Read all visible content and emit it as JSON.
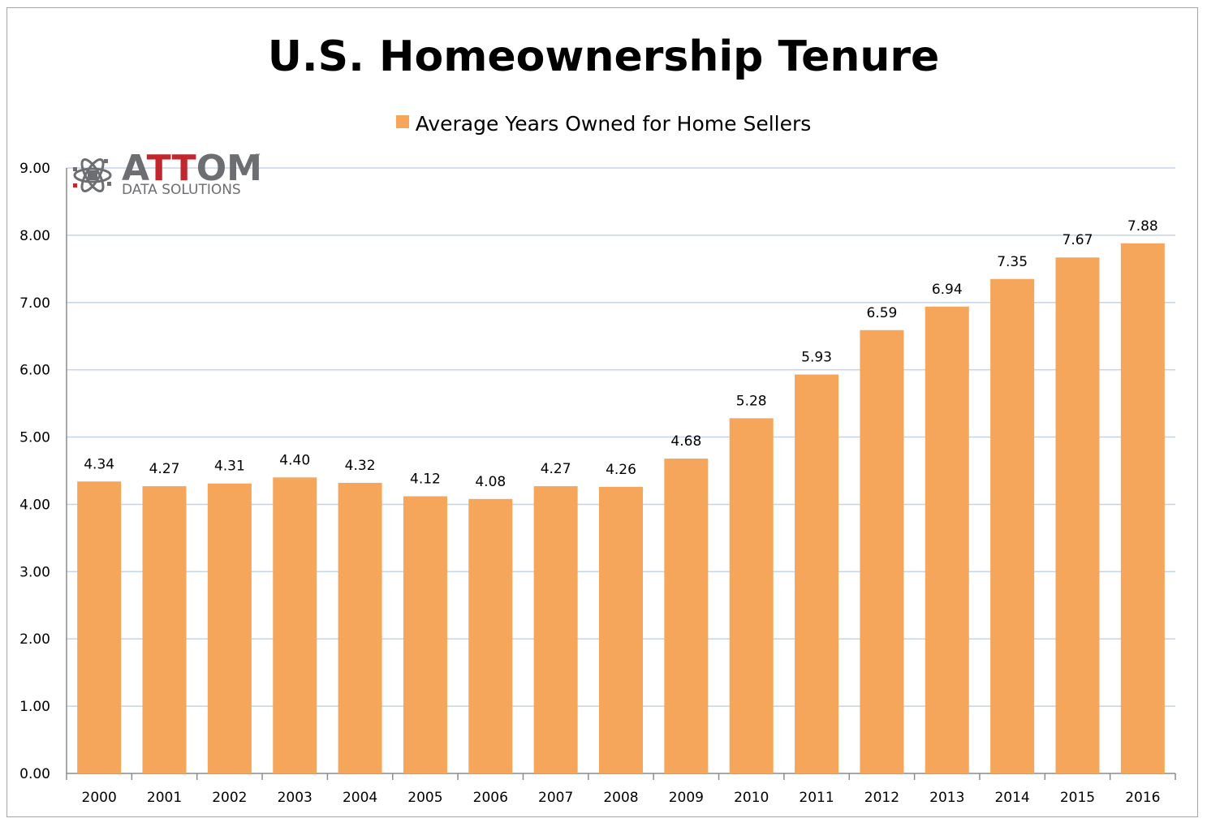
{
  "chart_data": {
    "type": "bar",
    "title": "U.S. Homeownership Tenure",
    "legend_position": "top-center",
    "grid": true,
    "ylim": [
      0,
      9
    ],
    "ytick_step": 1,
    "categories": [
      "2000",
      "2001",
      "2002",
      "2003",
      "2004",
      "2005",
      "2006",
      "2007",
      "2008",
      "2009",
      "2010",
      "2011",
      "2012",
      "2013",
      "2014",
      "2015",
      "2016"
    ],
    "series": [
      {
        "name": "Average Years Owned for Home Sellers",
        "values": [
          4.34,
          4.27,
          4.31,
          4.4,
          4.32,
          4.12,
          4.08,
          4.27,
          4.26,
          4.68,
          5.28,
          5.93,
          6.59,
          6.94,
          7.35,
          7.67,
          7.88
        ],
        "labels": [
          "4.34",
          "4.27",
          "4.31",
          "4.40",
          "4.32",
          "4.12",
          "4.08",
          "4.27",
          "4.26",
          "4.68",
          "5.28",
          "5.93",
          "6.59",
          "6.94",
          "7.35",
          "7.67",
          "7.88"
        ]
      }
    ],
    "yticks": [
      "0.00",
      "1.00",
      "2.00",
      "3.00",
      "4.00",
      "5.00",
      "6.00",
      "7.00",
      "8.00",
      "9.00"
    ],
    "colors": {
      "bar": "#f5a65b",
      "grid": "#c5d3e6",
      "axis": "#8c8c8c"
    }
  },
  "logo": {
    "word_prefix": "A",
    "word_red": "TT",
    "word_suffix": "OM",
    "tm": "™",
    "subtitle": "DATA SOLUTIONS",
    "icon": "atom-icon"
  }
}
